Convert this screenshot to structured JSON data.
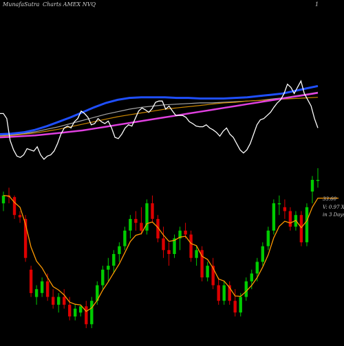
{
  "header": {
    "brand": "MunafaSutra",
    "site": "Charts",
    "ticker_line": "Charts AMEX  NVQ",
    "right_label": "1"
  },
  "annotations": {
    "price": "33.60",
    "volume": "V: 0.97 X",
    "days": "in 3 Days"
  },
  "colors": {
    "background": "#000000",
    "bull": "#00cc00",
    "bear": "#dd0000",
    "ema_short": "#ff9900",
    "price_line": "#ffffff",
    "ma_blue": "#1f4fff",
    "ma_magenta": "#e040e0",
    "ma_orange": "#cc8800",
    "ma_grey": "#aaaaaa"
  },
  "chart_data": [
    {
      "type": "line",
      "panel": "indicator",
      "series": [
        {
          "name": "",
          "color": "#ffffff",
          "values": [
            78,
            78,
            70,
            35,
            20,
            10,
            8,
            12,
            22,
            20,
            18,
            25,
            12,
            5,
            10,
            12,
            18,
            30,
            45,
            55,
            58,
            55,
            65,
            70,
            82,
            78,
            72,
            60,
            62,
            70,
            65,
            62,
            66,
            55,
            40,
            38,
            45,
            55,
            60,
            58,
            70,
            82,
            87,
            84,
            80,
            86,
            96,
            98,
            98,
            85,
            90,
            82,
            75,
            75,
            75,
            72,
            65,
            62,
            58,
            57,
            57,
            60,
            55,
            52,
            48,
            42,
            50,
            55,
            45,
            40,
            30,
            20,
            15,
            20,
            30,
            45,
            60,
            68,
            70,
            75,
            80,
            88,
            95,
            100,
            110,
            125,
            120,
            110,
            120,
            130,
            110,
            100,
            90,
            70,
            55
          ]
        },
        {
          "name": "",
          "color": "#1f4fff",
          "values": [
            45,
            46,
            48,
            52,
            58,
            65,
            72,
            80,
            88,
            95,
            100,
            103,
            104,
            104,
            104,
            103,
            103,
            102,
            102,
            102,
            103,
            104,
            106,
            108,
            110,
            114,
            118,
            122
          ]
        },
        {
          "name": "",
          "color": "#e040e0",
          "values": [
            40,
            41,
            42,
            43,
            45,
            47,
            49,
            51,
            54,
            57,
            60,
            63,
            66,
            69,
            72,
            75,
            78,
            81,
            84,
            87,
            90,
            93,
            96,
            99,
            102,
            105,
            108,
            111
          ]
        },
        {
          "name": "",
          "color": "#cc8800",
          "values": [
            42,
            43,
            45,
            47,
            50,
            53,
            57,
            61,
            65,
            69,
            73,
            76,
            79,
            82,
            85,
            87,
            89,
            91,
            93,
            95,
            96,
            98,
            99,
            100,
            101,
            102,
            103,
            104
          ]
        },
        {
          "name": "",
          "color": "#aaaaaa",
          "values": [
            43,
            44,
            46,
            49,
            53,
            57,
            62,
            67,
            72,
            77,
            81,
            85,
            88,
            90,
            92,
            93,
            94,
            95,
            95,
            96,
            97,
            98,
            99,
            101,
            103,
            106,
            109,
            112
          ]
        }
      ]
    },
    {
      "type": "candlestick",
      "panel": "price",
      "ohlc": [
        [
          33.3,
          33.45,
          33.2,
          33.4
        ],
        [
          33.4,
          33.5,
          33.3,
          33.38
        ],
        [
          33.38,
          33.4,
          33.1,
          33.15
        ],
        [
          33.15,
          33.2,
          33.05,
          33.12
        ],
        [
          33.1,
          33.15,
          32.55,
          32.6
        ],
        [
          32.45,
          32.5,
          32.1,
          32.15
        ],
        [
          32.1,
          32.25,
          32.0,
          32.2
        ],
        [
          32.15,
          32.35,
          32.1,
          32.3
        ],
        [
          32.3,
          32.4,
          32.05,
          32.1
        ],
        [
          32.1,
          32.2,
          31.95,
          32.0
        ],
        [
          32.0,
          32.15,
          31.9,
          32.1
        ],
        [
          32.1,
          32.2,
          31.95,
          32.0
        ],
        [
          32.0,
          32.1,
          31.8,
          31.85
        ],
        [
          31.85,
          32.0,
          31.8,
          31.95
        ],
        [
          31.9,
          32.0,
          31.85,
          31.98
        ],
        [
          31.98,
          32.05,
          31.7,
          31.75
        ],
        [
          31.75,
          32.1,
          31.7,
          32.05
        ],
        [
          32.05,
          32.3,
          32.0,
          32.25
        ],
        [
          32.25,
          32.5,
          32.2,
          32.45
        ],
        [
          32.45,
          32.6,
          32.3,
          32.5
        ],
        [
          32.5,
          32.7,
          32.4,
          32.65
        ],
        [
          32.65,
          32.8,
          32.55,
          32.75
        ],
        [
          32.75,
          33.0,
          32.7,
          32.95
        ],
        [
          32.95,
          33.15,
          32.85,
          33.1
        ],
        [
          33.1,
          33.2,
          32.95,
          33.05
        ],
        [
          33.05,
          33.25,
          32.9,
          32.95
        ],
        [
          32.95,
          33.35,
          32.9,
          33.3
        ],
        [
          33.3,
          33.4,
          33.05,
          33.1
        ],
        [
          33.1,
          33.15,
          32.8,
          32.85
        ],
        [
          32.85,
          33.0,
          32.6,
          32.7
        ],
        [
          32.7,
          32.8,
          32.5,
          32.65
        ],
        [
          32.65,
          32.9,
          32.6,
          32.85
        ],
        [
          32.85,
          33.0,
          32.7,
          32.95
        ],
        [
          32.95,
          33.05,
          32.85,
          32.9
        ],
        [
          32.9,
          32.95,
          32.55,
          32.6
        ],
        [
          32.6,
          32.75,
          32.5,
          32.7
        ],
        [
          32.7,
          32.75,
          32.3,
          32.35
        ],
        [
          32.35,
          32.55,
          32.3,
          32.5
        ],
        [
          32.5,
          32.6,
          32.2,
          32.25
        ],
        [
          32.25,
          32.35,
          32.0,
          32.05
        ],
        [
          32.05,
          32.3,
          32.0,
          32.25
        ],
        [
          32.25,
          32.3,
          32.0,
          32.05
        ],
        [
          32.05,
          32.2,
          31.85,
          31.9
        ],
        [
          31.9,
          32.15,
          31.85,
          32.1
        ],
        [
          32.1,
          32.35,
          32.05,
          32.3
        ],
        [
          32.3,
          32.45,
          32.2,
          32.4
        ],
        [
          32.4,
          32.6,
          32.3,
          32.55
        ],
        [
          32.55,
          32.8,
          32.5,
          32.75
        ],
        [
          32.75,
          33.0,
          32.7,
          32.95
        ],
        [
          32.95,
          33.35,
          32.9,
          33.3
        ],
        [
          33.3,
          33.4,
          33.15,
          33.3
        ],
        [
          33.25,
          33.35,
          33.1,
          33.2
        ],
        [
          33.2,
          33.25,
          32.95,
          33.0
        ],
        [
          33.0,
          33.2,
          32.95,
          33.15
        ],
        [
          33.15,
          33.2,
          32.75,
          32.8
        ],
        [
          32.8,
          33.3,
          32.75,
          33.25
        ],
        [
          33.45,
          33.65,
          33.3,
          33.6
        ],
        [
          33.6,
          33.75,
          33.5,
          33.6
        ]
      ]
    }
  ]
}
